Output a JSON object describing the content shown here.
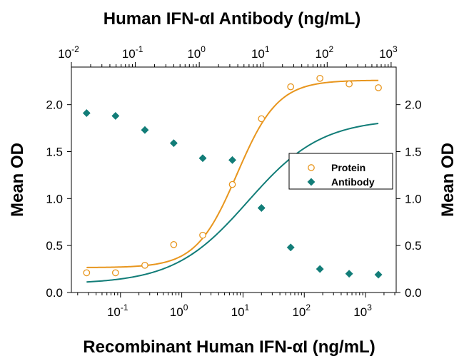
{
  "chart_data": {
    "type": "scatter",
    "title": "Human IFN-αI Antibody (ng/mL)",
    "xlabel": "Recombinant Human IFN-αI (ng/mL)",
    "ylabel_left": "Mean OD",
    "ylabel_right": "Mean OD",
    "x_scale": "log",
    "xlim_bottom": [
      0.0158,
      3162
    ],
    "xlim_top": [
      0.01,
      1200
    ],
    "ylim": [
      0,
      2.4
    ],
    "y_ticks": [
      "0.0",
      "0.5",
      "1.0",
      "1.5",
      "2.0"
    ],
    "y_tick_values": [
      0,
      0.5,
      1.0,
      1.5,
      2.0
    ],
    "x_ticks_bottom": [
      {
        "value": 0.1,
        "base": "10",
        "exp": "-1"
      },
      {
        "value": 1,
        "base": "10",
        "exp": "0"
      },
      {
        "value": 10,
        "base": "10",
        "exp": "1"
      },
      {
        "value": 100,
        "base": "10",
        "exp": "2"
      },
      {
        "value": 1000,
        "base": "10",
        "exp": "3"
      }
    ],
    "x_ticks_top": [
      {
        "value": 0.01,
        "base": "10",
        "exp": "-2"
      },
      {
        "value": 0.1,
        "base": "10",
        "exp": "-1"
      },
      {
        "value": 1,
        "base": "10",
        "exp": "0"
      },
      {
        "value": 10,
        "base": "10",
        "exp": "1"
      },
      {
        "value": 100,
        "base": "10",
        "exp": "2"
      },
      {
        "value": 1000,
        "base": "10",
        "exp": "3"
      }
    ],
    "legend": {
      "position": "center-right",
      "entries": [
        "Protein",
        "Antibody"
      ]
    },
    "series": [
      {
        "name": "Protein",
        "axis": "bottom",
        "marker": "open-circle",
        "color": "#E8961E",
        "x": [
          0.028,
          0.083,
          0.25,
          0.74,
          2.2,
          6.7,
          20,
          60,
          180,
          540,
          1620
        ],
        "y": [
          0.21,
          0.21,
          0.29,
          0.51,
          0.61,
          1.15,
          1.85,
          2.19,
          2.28,
          2.22,
          2.18
        ],
        "fit": {
          "bottom": 0.265,
          "top": 2.26,
          "ec50": 8.0,
          "hill": 1.3
        }
      },
      {
        "name": "Antibody",
        "axis": "bottom",
        "marker": "filled-diamond",
        "color": "#127D78",
        "x": [
          0.028,
          0.083,
          0.25,
          0.74,
          2.2,
          6.7,
          20,
          60,
          180,
          540,
          1620
        ],
        "y": [
          1.91,
          1.88,
          1.73,
          1.59,
          1.43,
          1.41,
          0.9,
          0.48,
          0.25,
          0.2,
          0.19
        ],
        "fit": {
          "bottom": 0.09,
          "top": 1.85,
          "ec50": 12.0,
          "hill": 0.72
        }
      }
    ]
  }
}
